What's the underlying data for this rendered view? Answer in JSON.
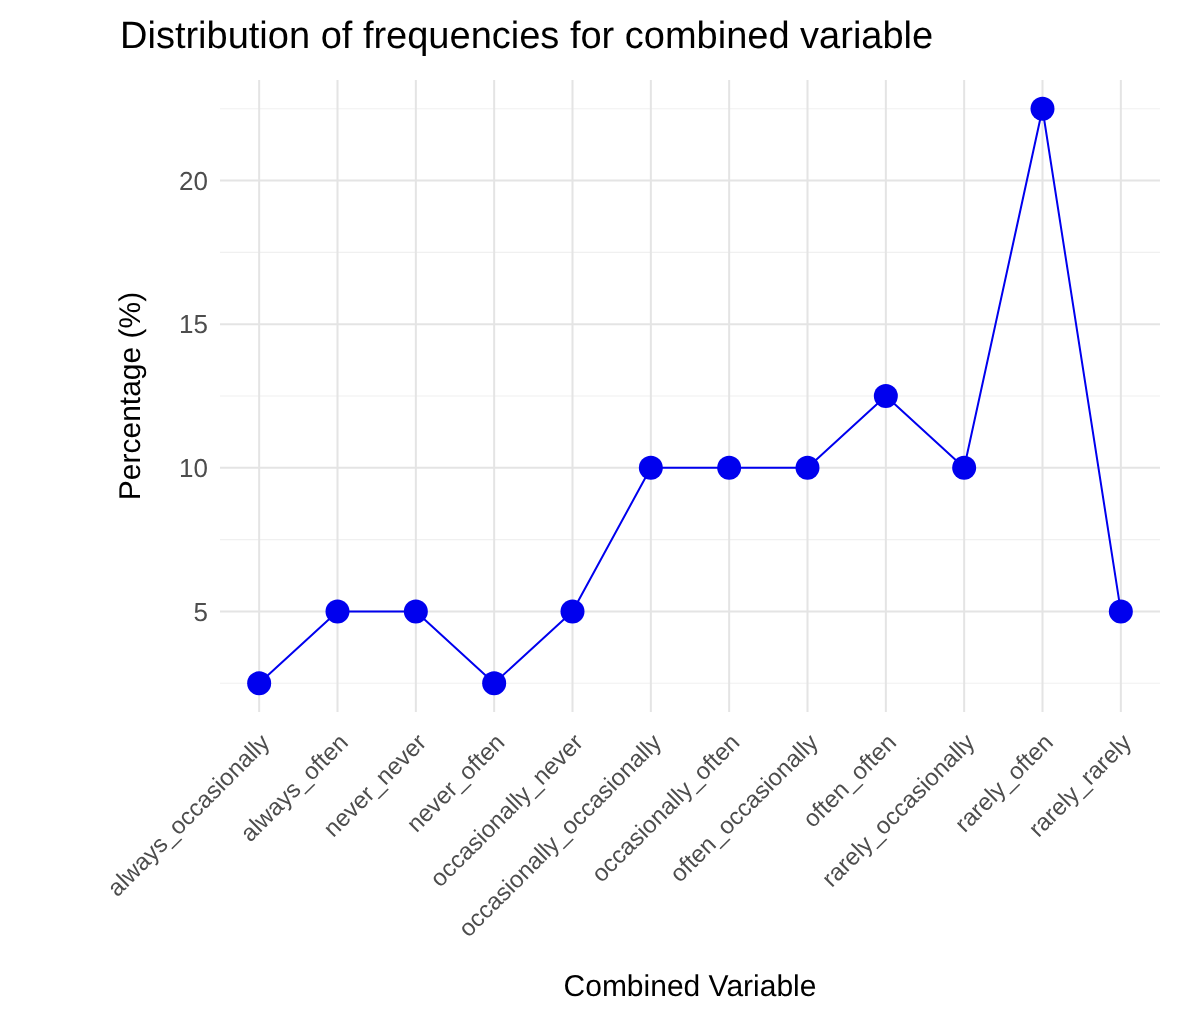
{
  "chart_data": {
    "type": "line",
    "title": "Distribution of frequencies for combined variable",
    "xlabel": "Combined Variable",
    "ylabel": "Percentage (%)",
    "categories": [
      "always_occasionally",
      "always_often",
      "never_never",
      "never_often",
      "occasionally_never",
      "occasionally_occasionally",
      "occasionally_often",
      "often_occasionally",
      "often_often",
      "rarely_occasionally",
      "rarely_often",
      "rarely_rarely"
    ],
    "series": [
      {
        "color": "#0000ee",
        "values": [
          2.5,
          5,
          5,
          2.5,
          5,
          10,
          10,
          10,
          12.5,
          10,
          22.5,
          5
        ]
      }
    ],
    "ylim": [
      1.5,
      23.5
    ],
    "yticks": [
      5,
      10,
      15,
      20
    ],
    "grid": true,
    "marker": "circle",
    "line_style": "solid"
  }
}
